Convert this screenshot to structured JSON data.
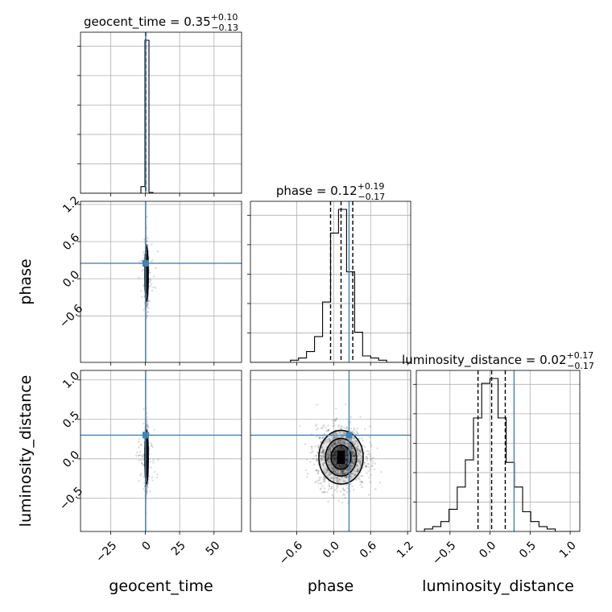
{
  "chart_data": {
    "type": "corner",
    "parameters": [
      "geocent_time",
      "phase",
      "luminosity_distance"
    ],
    "axis_labels": [
      "geocent_time",
      "phase",
      "luminosity_distance"
    ],
    "truths": [
      0.35,
      0.25,
      0.3
    ],
    "truth_color": "#4682b4",
    "ranges": {
      "geocent_time": [
        -47,
        70
      ],
      "phase": [
        -1.35,
        1.25
      ],
      "luminosity_distance": [
        -0.92,
        1.12
      ]
    },
    "ticks": {
      "geocent_time": {
        "values": [
          -25,
          0,
          25,
          50
        ],
        "labels": [
          "−25",
          "0",
          "25",
          "50"
        ]
      },
      "phase": {
        "values": [
          -0.6,
          0.0,
          0.6,
          1.2
        ],
        "labels": [
          "−0.6",
          "0.0",
          "0.6",
          "1.2"
        ]
      },
      "luminosity_distance": {
        "values": [
          -0.5,
          0.0,
          0.5,
          1.0
        ],
        "labels": [
          "−0.5",
          "0.0",
          "0.5",
          "1.0"
        ]
      }
    },
    "diagonal": [
      {
        "parameter": "geocent_time",
        "title_prefix": "geocent_time = ",
        "median": "0.35",
        "plus": "+0.10",
        "minus": "−0.13",
        "quantiles": [
          0.22,
          0.35,
          0.45
        ],
        "bin_edges": [
          -47,
          -44.07,
          -41.15,
          -38.23,
          -35.3,
          -32.38,
          -29.45,
          -26.53,
          -23.6,
          -20.68,
          -17.75,
          -14.82,
          -11.9,
          -8.98,
          -6.05,
          -3.12,
          -0.2,
          2.72,
          5.65,
          8.57,
          11.5,
          14.43,
          17.35,
          20.27,
          23.2,
          26.12,
          29.05,
          31.97,
          34.9,
          37.83,
          40.75,
          43.67,
          46.6,
          49.52,
          52.45,
          55.38,
          58.3,
          61.22,
          64.15,
          67.08,
          70
        ],
        "counts": [
          0,
          0,
          0,
          0,
          0,
          0,
          0,
          0,
          0,
          0,
          0,
          0,
          0,
          0,
          0,
          8,
          184,
          1,
          0,
          0,
          0,
          0,
          0,
          0,
          0,
          0,
          0,
          0,
          0,
          0,
          0,
          0,
          0,
          0,
          0,
          0,
          0,
          0,
          0,
          0
        ]
      },
      {
        "parameter": "phase",
        "title_prefix": "phase = ",
        "median": "0.12",
        "plus": "+0.19",
        "minus": "−0.17",
        "quantiles": [
          -0.05,
          0.12,
          0.31
        ],
        "bin_edges": [
          -1.35,
          -1.22,
          -1.09,
          -0.96,
          -0.83,
          -0.7,
          -0.57,
          -0.44,
          -0.31,
          -0.18,
          -0.05,
          0.08,
          0.21,
          0.34,
          0.47,
          0.6,
          0.73,
          0.86,
          0.99,
          1.12,
          1.25
        ],
        "counts": [
          0,
          0,
          0,
          0,
          0,
          1,
          2,
          5,
          12,
          28,
          60,
          71,
          42,
          14,
          3,
          2,
          1,
          0,
          0,
          0
        ]
      },
      {
        "parameter": "luminosity_distance",
        "title_prefix": "luminosity_distance = ",
        "median": "0.02",
        "plus": "+0.17",
        "minus": "−0.17",
        "quantiles": [
          -0.15,
          0.02,
          0.19
        ],
        "bin_edges": [
          -0.92,
          -0.818,
          -0.716,
          -0.614,
          -0.512,
          -0.41,
          -0.308,
          -0.206,
          -0.104,
          -0.002,
          0.1,
          0.202,
          0.304,
          0.406,
          0.508,
          0.61,
          0.712,
          0.814,
          0.916,
          1.018,
          1.12
        ],
        "counts": [
          0,
          1,
          2,
          4,
          9,
          18,
          29,
          46,
          60,
          62,
          46,
          28,
          18,
          8,
          4,
          2,
          1,
          0,
          0,
          0
        ]
      }
    ],
    "joint": [
      {
        "x": "geocent_time",
        "y": "phase",
        "center": [
          1.0,
          0.08
        ],
        "spread": [
          0.6,
          0.22
        ]
      },
      {
        "x": "geocent_time",
        "y": "luminosity_distance",
        "center": [
          1.0,
          0.02
        ],
        "spread": [
          0.6,
          0.17
        ]
      },
      {
        "x": "phase",
        "y": "luminosity_distance",
        "center": [
          0.12,
          0.02
        ],
        "spread": [
          0.18,
          0.17
        ]
      }
    ],
    "grid": true
  }
}
